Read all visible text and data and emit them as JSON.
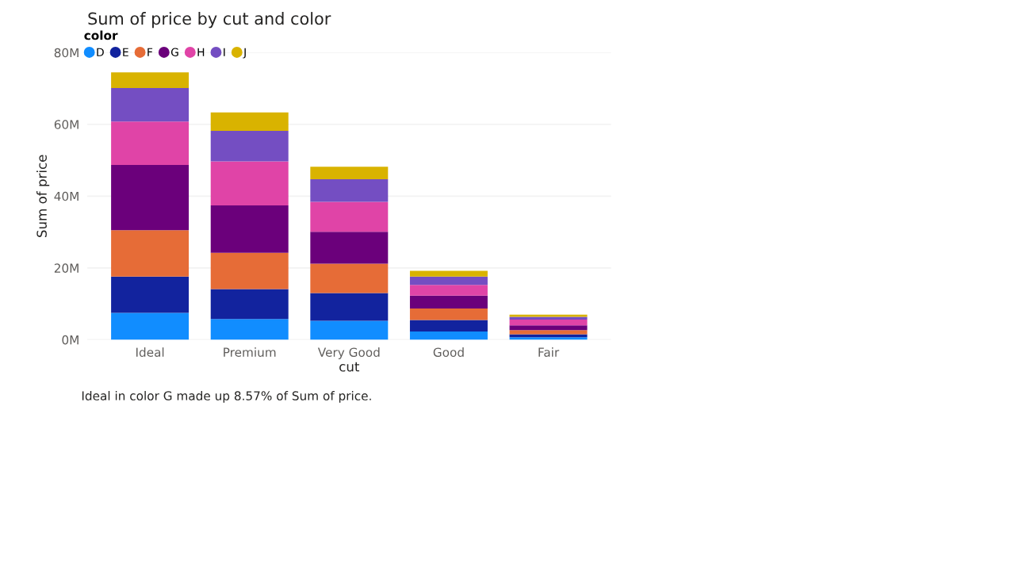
{
  "chart_data": {
    "type": "bar",
    "title": "Sum of price by cut and color",
    "xlabel": "cut",
    "ylabel": "Sum of price",
    "legend_title": "color",
    "categories": [
      "Ideal",
      "Premium",
      "Very Good",
      "Good",
      "Fair"
    ],
    "stacked": true,
    "series": [
      {
        "name": "D",
        "color": "#118dff",
        "values": [
          7.5,
          5.8,
          5.3,
          2.3,
          0.7
        ]
      },
      {
        "name": "E",
        "color": "#12239e",
        "values": [
          10.1,
          8.3,
          7.7,
          3.2,
          0.8
        ]
      },
      {
        "name": "F",
        "color": "#e66c37",
        "values": [
          12.9,
          10.1,
          8.2,
          3.2,
          1.2
        ]
      },
      {
        "name": "G",
        "color": "#6b007b",
        "values": [
          18.2,
          13.2,
          8.9,
          3.6,
          1.3
        ]
      },
      {
        "name": "H",
        "color": "#e044a7",
        "values": [
          12.1,
          12.3,
          8.3,
          3.0,
          1.6
        ]
      },
      {
        "name": "I",
        "color": "#744ec2",
        "values": [
          9.3,
          8.5,
          6.3,
          2.3,
          0.8
        ]
      },
      {
        "name": "J",
        "color": "#d9b300",
        "values": [
          4.4,
          5.1,
          3.5,
          1.6,
          0.6
        ]
      }
    ],
    "ylim": [
      0,
      80
    ],
    "yticks": [
      {
        "value": 0,
        "label": "0M"
      },
      {
        "value": 20,
        "label": "20M"
      },
      {
        "value": 40,
        "label": "40M"
      },
      {
        "value": 60,
        "label": "60M"
      },
      {
        "value": 80,
        "label": "80M"
      }
    ],
    "grid": "y",
    "legend": "top left",
    "marker": "circle",
    "annotations": [
      "Ideal in color G made up 8.57% of Sum of price."
    ]
  }
}
